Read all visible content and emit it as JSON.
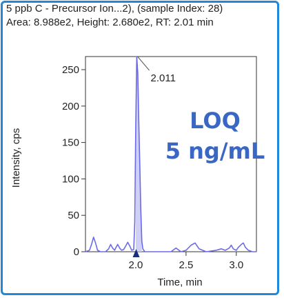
{
  "header": {
    "line1": "5 ppb C - Precursor Ion...2), (sample Index: 28)",
    "line2": "Area: 8.988e2, Height: 2.680e2, RT: 2.01 min"
  },
  "annotation": {
    "line1": "LOQ",
    "line2": "5 ng/mL"
  },
  "colors": {
    "frame": "#1f88d8",
    "trace": "#6a6ae8",
    "fill": "#c8c8f4",
    "annotation": "#3a67c4",
    "marker": "#1a2f80"
  },
  "chart_data": {
    "type": "line",
    "title": "",
    "xlabel": "Time, min",
    "ylabel": "Intensity, cps",
    "xlim": [
      1.5,
      3.2
    ],
    "ylim": [
      0,
      268
    ],
    "x_ticks": [
      2.0,
      2.5,
      3.0
    ],
    "x_tick_labels": [
      "2.0",
      "2.5",
      "3.0"
    ],
    "y_ticks": [
      0,
      50,
      100,
      150,
      200,
      250
    ],
    "y_tick_labels": [
      "0",
      "50",
      "100",
      "150",
      "200",
      "250"
    ],
    "peak_label": "2.011",
    "peak_rt": 2.011,
    "peak_height": 268,
    "integration_start": 2.0,
    "integration_end": 2.06,
    "grid": false,
    "legend": "none",
    "series": [
      {
        "x": [
          1.5,
          1.54,
          1.56,
          1.58,
          1.6,
          1.62,
          1.65,
          1.7,
          1.73,
          1.75,
          1.77,
          1.79,
          1.8,
          1.82,
          1.84,
          1.86,
          1.88,
          1.9,
          1.92,
          1.94,
          1.96,
          1.98,
          1.99,
          2.0,
          2.01,
          2.02,
          2.03,
          2.04,
          2.05,
          2.06,
          2.07,
          2.09,
          2.12,
          2.2,
          2.35,
          2.4,
          2.45,
          2.5,
          2.55,
          2.59,
          2.63,
          2.7,
          2.8,
          2.85,
          2.89,
          2.93,
          2.95,
          2.97,
          3.0,
          3.02,
          3.05,
          3.07,
          3.09,
          3.12,
          3.16,
          3.2
        ],
        "y": [
          0,
          2,
          10,
          20,
          12,
          2,
          0,
          0,
          4,
          10,
          5,
          2,
          5,
          10,
          5,
          2,
          3,
          8,
          13,
          8,
          2,
          3,
          40,
          170,
          268,
          245,
          180,
          120,
          60,
          15,
          4,
          0,
          0,
          0,
          0,
          5,
          0,
          2,
          9,
          12,
          4,
          0,
          2,
          4,
          2,
          5,
          9,
          4,
          2,
          6,
          10,
          12,
          6,
          2,
          0,
          0
        ]
      }
    ]
  }
}
